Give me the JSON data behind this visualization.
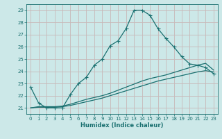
{
  "xlabel": "Humidex (Indice chaleur)",
  "bg_color": "#cce8e8",
  "grid_color": "#c8b8b8",
  "line_color": "#1a7070",
  "xlim": [
    -0.5,
    23.5
  ],
  "ylim": [
    20.5,
    29.5
  ],
  "xticks": [
    0,
    1,
    2,
    3,
    4,
    5,
    6,
    7,
    8,
    9,
    10,
    11,
    12,
    13,
    14,
    15,
    16,
    17,
    18,
    19,
    20,
    21,
    22,
    23
  ],
  "yticks": [
    21,
    22,
    23,
    24,
    25,
    26,
    27,
    28,
    29
  ],
  "line1_x": [
    0,
    1,
    2,
    3,
    4,
    5,
    6,
    7,
    8,
    9,
    10,
    11,
    12,
    13,
    14,
    15,
    16,
    17,
    18,
    19,
    20,
    21,
    22,
    23
  ],
  "line1_y": [
    22.7,
    21.4,
    21.0,
    21.0,
    21.0,
    22.1,
    23.0,
    23.5,
    24.5,
    25.0,
    26.1,
    26.5,
    27.5,
    29.0,
    29.0,
    28.6,
    27.5,
    26.7,
    26.0,
    25.2,
    24.6,
    24.5,
    24.3,
    23.8
  ],
  "line2_x": [
    0,
    1,
    2,
    3,
    4,
    5,
    6,
    7,
    8,
    9,
    10,
    11,
    12,
    13,
    14,
    15,
    16,
    17,
    18,
    19,
    20,
    21,
    22,
    23
  ],
  "line2_y": [
    21.0,
    21.1,
    21.1,
    21.1,
    21.15,
    21.3,
    21.5,
    21.7,
    21.85,
    22.0,
    22.2,
    22.45,
    22.7,
    22.95,
    23.2,
    23.4,
    23.55,
    23.7,
    23.9,
    24.1,
    24.3,
    24.5,
    24.65,
    24.1
  ],
  "line3_x": [
    0,
    1,
    2,
    3,
    4,
    5,
    6,
    7,
    8,
    9,
    10,
    11,
    12,
    13,
    14,
    15,
    16,
    17,
    18,
    19,
    20,
    21,
    22,
    23
  ],
  "line3_y": [
    21.0,
    21.05,
    21.05,
    21.05,
    21.1,
    21.2,
    21.35,
    21.5,
    21.65,
    21.8,
    22.0,
    22.2,
    22.4,
    22.6,
    22.8,
    23.0,
    23.2,
    23.35,
    23.5,
    23.65,
    23.8,
    23.95,
    24.05,
    23.95
  ]
}
